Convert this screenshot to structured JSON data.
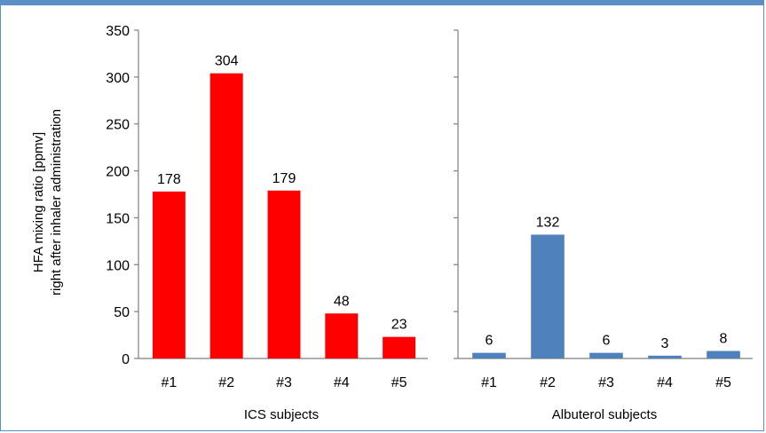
{
  "chart_data": [
    {
      "type": "bar",
      "xlabel": "ICS subjects",
      "ylabel_lines": [
        "HFA mixing ratio [ppmv]",
        "right after inhaler administration"
      ],
      "categories": [
        "#1",
        "#2",
        "#3",
        "#4",
        "#5"
      ],
      "values": [
        178,
        304,
        179,
        48,
        23
      ],
      "data_labels": [
        "178",
        "304",
        "179",
        "48",
        "23"
      ],
      "color": "#ff0000",
      "ylim": [
        0,
        350
      ],
      "yticks": [
        "0",
        "50",
        "100",
        "150",
        "200",
        "250",
        "300",
        "350"
      ]
    },
    {
      "type": "bar",
      "xlabel": "Albuterol subjects",
      "categories": [
        "#1",
        "#2",
        "#3",
        "#4",
        "#5"
      ],
      "values": [
        6,
        132,
        6,
        3,
        8
      ],
      "data_labels": [
        "6",
        "132",
        "6",
        "3",
        "8"
      ],
      "color": "#4f81bd",
      "ylim": [
        0,
        350
      ]
    }
  ]
}
